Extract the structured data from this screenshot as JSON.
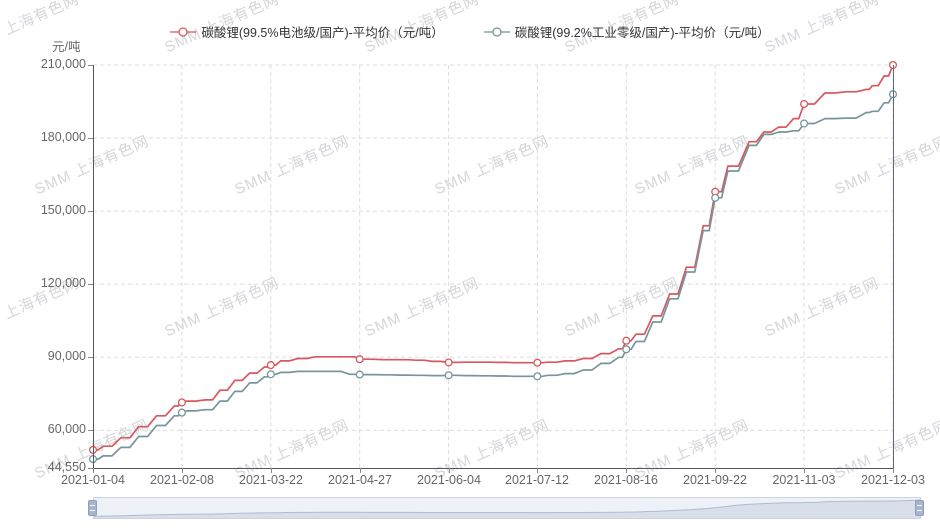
{
  "watermark": {
    "text": "SMM 上海有色网"
  },
  "legend": {
    "items": [
      {
        "label": "碳酸锂(99.5%电池级/国产)-平均价（元/吨）",
        "color": "#d7595f"
      },
      {
        "label": "碳酸锂(99.2%工业零级/国产)-平均价（元/吨）",
        "color": "#78959b"
      }
    ]
  },
  "y_axis": {
    "unit": "元/吨",
    "tick_labels": [
      "44,550",
      "60,000",
      "90,000",
      "120,000",
      "150,000",
      "180,000",
      "210,000"
    ],
    "tick_values": [
      44550,
      60000,
      90000,
      120000,
      150000,
      180000,
      210000
    ]
  },
  "x_axis": {
    "tick_labels": [
      "2021-01-04",
      "2021-02-08",
      "2021-03-22",
      "2021-04-27",
      "2021-06-04",
      "2021-07-12",
      "2021-08-16",
      "2021-09-22",
      "2021-11-03",
      "2021-12-03"
    ]
  },
  "chart_data": {
    "type": "line",
    "title": "",
    "xlabel": "",
    "ylabel": "元/吨",
    "ylim": [
      44550,
      210000
    ],
    "grid": true,
    "legend_position": "top",
    "categories": [
      "2021-01-04",
      "2021-01-08",
      "2021-01-15",
      "2021-01-22",
      "2021-01-29",
      "2021-02-05",
      "2021-02-08",
      "2021-02-10",
      "2021-02-19",
      "2021-02-26",
      "2021-03-05",
      "2021-03-12",
      "2021-03-19",
      "2021-03-22",
      "2021-03-26",
      "2021-04-02",
      "2021-04-09",
      "2021-04-16",
      "2021-04-23",
      "2021-04-27",
      "2021-05-07",
      "2021-05-14",
      "2021-05-21",
      "2021-05-28",
      "2021-06-04",
      "2021-06-11",
      "2021-06-18",
      "2021-06-25",
      "2021-07-02",
      "2021-07-09",
      "2021-07-12",
      "2021-07-16",
      "2021-07-23",
      "2021-07-30",
      "2021-08-06",
      "2021-08-13",
      "2021-08-16",
      "2021-08-20",
      "2021-08-27",
      "2021-09-03",
      "2021-09-10",
      "2021-09-17",
      "2021-09-22",
      "2021-09-28",
      "2021-10-08",
      "2021-10-15",
      "2021-10-22",
      "2021-10-29",
      "2021-11-03",
      "2021-11-10",
      "2021-11-17",
      "2021-11-24",
      "2021-11-26",
      "2021-11-30",
      "2021-12-03"
    ],
    "series": [
      {
        "name": "碳酸锂(99.5%电池级/国产)-平均价（元/吨）",
        "color": "#d7595f",
        "values": [
          52000,
          53500,
          57000,
          61500,
          66000,
          70000,
          71500,
          72000,
          72500,
          76500,
          80500,
          83500,
          86000,
          86800,
          88500,
          89500,
          90200,
          90200,
          90200,
          89200,
          89000,
          89000,
          88800,
          88300,
          87900,
          88000,
          88000,
          87900,
          87800,
          87800,
          87800,
          88000,
          88500,
          89500,
          91500,
          93500,
          96800,
          99500,
          107000,
          116000,
          127000,
          144000,
          158000,
          168500,
          178500,
          182500,
          184500,
          188000,
          194000,
          198500,
          199000,
          200000,
          201500,
          205500,
          210000
        ]
      },
      {
        "name": "碳酸锂(99.2%工业零级/国产)-平均价（元/吨）",
        "color": "#78959b",
        "values": [
          48200,
          49500,
          53000,
          57500,
          62000,
          66000,
          67300,
          68000,
          68500,
          72000,
          76000,
          79500,
          82000,
          83000,
          83800,
          84200,
          84200,
          84200,
          83000,
          82900,
          82800,
          82700,
          82600,
          82500,
          82600,
          82500,
          82400,
          82300,
          82200,
          82200,
          82200,
          82600,
          83300,
          84800,
          87500,
          90000,
          93300,
          96500,
          104500,
          114000,
          125000,
          142000,
          155500,
          166500,
          177000,
          181500,
          182500,
          183000,
          186000,
          188000,
          188200,
          190500,
          191000,
          194500,
          198000
        ]
      }
    ],
    "marker_dates": [
      "2021-01-04",
      "2021-02-08",
      "2021-03-22",
      "2021-04-27",
      "2021-06-04",
      "2021-07-12",
      "2021-08-16",
      "2021-09-22",
      "2021-11-03",
      "2021-12-03"
    ]
  }
}
